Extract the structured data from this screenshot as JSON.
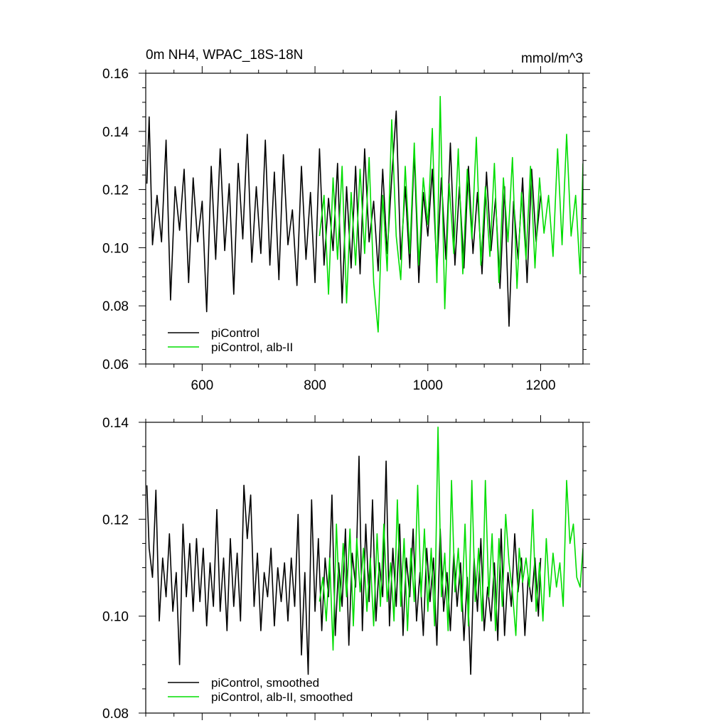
{
  "chart_data": [
    {
      "type": "line",
      "title": "0m NH4, WPAC_18S-18N",
      "units": "mmol/m^3",
      "xlim": [
        500,
        1275
      ],
      "ylim": [
        0.06,
        0.16
      ],
      "xticks": [
        600,
        800,
        1000,
        1200
      ],
      "xtick_labels": [
        "600",
        "800",
        "1000",
        "1200"
      ],
      "yticks": [
        0.06,
        0.08,
        0.1,
        0.12,
        0.14,
        0.16
      ],
      "ytick_labels": [
        "0.06",
        "0.08",
        "0.10",
        "0.12",
        "0.14",
        "0.16"
      ],
      "legend_position": "bottom-left",
      "series": [
        {
          "name": "piControl",
          "color": "#000000",
          "x": [
            502,
            506,
            512,
            520,
            528,
            536,
            544,
            552,
            560,
            568,
            576,
            584,
            592,
            600,
            608,
            616,
            624,
            632,
            640,
            648,
            656,
            664,
            672,
            680,
            688,
            696,
            704,
            712,
            720,
            728,
            736,
            744,
            752,
            760,
            768,
            776,
            784,
            792,
            800,
            808,
            816,
            824,
            832,
            840,
            848,
            856,
            864,
            872,
            880,
            888,
            896,
            904,
            912,
            920,
            928,
            936,
            944,
            952,
            960,
            968,
            976,
            984,
            992,
            1000,
            1008,
            1016,
            1024,
            1032,
            1040,
            1048,
            1056,
            1064,
            1072,
            1080,
            1088,
            1096,
            1104,
            1112,
            1120,
            1128,
            1136,
            1144,
            1152,
            1160,
            1168,
            1176,
            1184,
            1192,
            1200
          ],
          "y": [
            0.122,
            0.145,
            0.101,
            0.118,
            0.102,
            0.137,
            0.082,
            0.121,
            0.106,
            0.127,
            0.088,
            0.124,
            0.102,
            0.116,
            0.078,
            0.128,
            0.096,
            0.134,
            0.099,
            0.122,
            0.084,
            0.129,
            0.103,
            0.139,
            0.095,
            0.121,
            0.098,
            0.137,
            0.094,
            0.126,
            0.089,
            0.132,
            0.101,
            0.113,
            0.087,
            0.128,
            0.096,
            0.119,
            0.088,
            0.134,
            0.094,
            0.117,
            0.099,
            0.129,
            0.081,
            0.121,
            0.093,
            0.128,
            0.091,
            0.134,
            0.102,
            0.116,
            0.092,
            0.127,
            0.098,
            0.124,
            0.147,
            0.096,
            0.121,
            0.093,
            0.133,
            0.088,
            0.119,
            0.104,
            0.127,
            0.092,
            0.124,
            0.096,
            0.136,
            0.094,
            0.121,
            0.093,
            0.128,
            0.098,
            0.119,
            0.091,
            0.126,
            0.099,
            0.117,
            0.086,
            0.121,
            0.073,
            0.116,
            0.096,
            0.124,
            0.088,
            0.127,
            0.102,
            0.118
          ]
        },
        {
          "name": "piControl, alb-II",
          "color": "#00dd00",
          "x": [
            808,
            816,
            824,
            832,
            840,
            848,
            856,
            864,
            872,
            880,
            888,
            896,
            904,
            912,
            920,
            928,
            936,
            944,
            952,
            960,
            968,
            976,
            984,
            992,
            1000,
            1008,
            1016,
            1022,
            1030,
            1038,
            1046,
            1054,
            1062,
            1070,
            1078,
            1086,
            1094,
            1102,
            1110,
            1118,
            1126,
            1134,
            1142,
            1150,
            1158,
            1166,
            1174,
            1182,
            1190,
            1198,
            1206,
            1214,
            1222,
            1230,
            1238,
            1246,
            1254,
            1262,
            1270,
            1275
          ],
          "y": [
            0.104,
            0.118,
            0.084,
            0.124,
            0.096,
            0.128,
            0.081,
            0.119,
            0.094,
            0.127,
            0.098,
            0.131,
            0.088,
            0.071,
            0.118,
            0.092,
            0.144,
            0.104,
            0.089,
            0.128,
            0.098,
            0.136,
            0.094,
            0.124,
            0.108,
            0.141,
            0.088,
            0.152,
            0.079,
            0.122,
            0.098,
            0.134,
            0.091,
            0.127,
            0.103,
            0.138,
            0.094,
            0.121,
            0.097,
            0.129,
            0.088,
            0.124,
            0.102,
            0.131,
            0.086,
            0.119,
            0.096,
            0.128,
            0.093,
            0.124,
            0.105,
            0.118,
            0.097,
            0.134,
            0.101,
            0.139,
            0.104,
            0.118,
            0.091,
            0.129
          ]
        }
      ]
    },
    {
      "type": "line",
      "xlim": [
        500,
        1275
      ],
      "ylim": [
        0.08,
        0.14
      ],
      "xticks": [
        600,
        800,
        1000,
        1200
      ],
      "yticks": [
        0.08,
        0.1,
        0.12,
        0.14
      ],
      "ytick_labels": [
        "0.08",
        "0.10",
        "0.12",
        "0.14"
      ],
      "legend_position": "bottom-left",
      "series": [
        {
          "name": "piControl, smoothed",
          "color": "#000000",
          "x": [
            502,
            506,
            512,
            518,
            524,
            530,
            536,
            542,
            548,
            554,
            560,
            566,
            572,
            578,
            584,
            590,
            596,
            602,
            608,
            614,
            620,
            626,
            632,
            638,
            644,
            650,
            656,
            662,
            668,
            674,
            680,
            686,
            692,
            698,
            704,
            710,
            716,
            722,
            728,
            734,
            740,
            746,
            752,
            758,
            764,
            770,
            776,
            782,
            788,
            794,
            800,
            806,
            812,
            818,
            824,
            830,
            836,
            842,
            848,
            854,
            860,
            866,
            872,
            878,
            884,
            890,
            896,
            902,
            908,
            914,
            920,
            926,
            932,
            938,
            944,
            950,
            956,
            962,
            968,
            974,
            980,
            986,
            992,
            998,
            1004,
            1010,
            1016,
            1022,
            1028,
            1034,
            1040,
            1046,
            1052,
            1058,
            1064,
            1070,
            1076,
            1082,
            1088,
            1094,
            1100,
            1106,
            1112,
            1118,
            1124,
            1130,
            1136,
            1142,
            1148,
            1154,
            1160,
            1166,
            1172,
            1178,
            1184,
            1190,
            1196,
            1200
          ],
          "y": [
            0.127,
            0.114,
            0.108,
            0.126,
            0.099,
            0.112,
            0.104,
            0.117,
            0.101,
            0.109,
            0.09,
            0.119,
            0.104,
            0.115,
            0.101,
            0.116,
            0.103,
            0.114,
            0.098,
            0.111,
            0.102,
            0.122,
            0.101,
            0.112,
            0.097,
            0.116,
            0.102,
            0.113,
            0.099,
            0.127,
            0.116,
            0.125,
            0.102,
            0.113,
            0.097,
            0.109,
            0.104,
            0.114,
            0.098,
            0.11,
            0.103,
            0.111,
            0.099,
            0.112,
            0.102,
            0.121,
            0.092,
            0.109,
            0.088,
            0.124,
            0.101,
            0.116,
            0.097,
            0.112,
            0.104,
            0.125,
            0.096,
            0.111,
            0.102,
            0.118,
            0.094,
            0.113,
            0.106,
            0.133,
            0.097,
            0.119,
            0.103,
            0.124,
            0.099,
            0.111,
            0.104,
            0.132,
            0.098,
            0.114,
            0.102,
            0.119,
            0.096,
            0.112,
            0.104,
            0.118,
            0.099,
            0.109,
            0.096,
            0.114,
            0.103,
            0.112,
            0.094,
            0.118,
            0.101,
            0.109,
            0.097,
            0.113,
            0.102,
            0.111,
            0.095,
            0.108,
            0.088,
            0.112,
            0.101,
            0.116,
            0.097,
            0.106,
            0.099,
            0.111,
            0.095,
            0.118,
            0.096,
            0.109,
            0.102,
            0.117,
            0.105,
            0.112,
            0.096,
            0.108,
            0.103,
            0.112,
            0.1,
            0.112
          ]
        },
        {
          "name": "piControl, alb-II, smoothed",
          "color": "#00dd00",
          "x": [
            808,
            814,
            820,
            826,
            832,
            838,
            844,
            850,
            856,
            862,
            868,
            874,
            880,
            886,
            892,
            898,
            904,
            910,
            916,
            922,
            928,
            934,
            940,
            946,
            952,
            958,
            964,
            970,
            976,
            982,
            988,
            994,
            1000,
            1006,
            1012,
            1018,
            1024,
            1030,
            1036,
            1042,
            1048,
            1054,
            1060,
            1066,
            1072,
            1078,
            1084,
            1090,
            1096,
            1102,
            1108,
            1114,
            1120,
            1126,
            1132,
            1138,
            1144,
            1150,
            1156,
            1162,
            1168,
            1174,
            1180,
            1186,
            1192,
            1198,
            1204,
            1210,
            1216,
            1222,
            1228,
            1234,
            1240,
            1246,
            1252,
            1258,
            1264,
            1270,
            1275
          ],
          "y": [
            0.103,
            0.108,
            0.099,
            0.112,
            0.093,
            0.119,
            0.101,
            0.115,
            0.104,
            0.118,
            0.098,
            0.116,
            0.105,
            0.114,
            0.101,
            0.112,
            0.098,
            0.117,
            0.102,
            0.119,
            0.103,
            0.111,
            0.099,
            0.124,
            0.102,
            0.116,
            0.097,
            0.114,
            0.103,
            0.127,
            0.104,
            0.118,
            0.101,
            0.114,
            0.098,
            0.139,
            0.104,
            0.113,
            0.097,
            0.128,
            0.105,
            0.114,
            0.101,
            0.119,
            0.098,
            0.128,
            0.103,
            0.114,
            0.099,
            0.128,
            0.104,
            0.117,
            0.097,
            0.116,
            0.102,
            0.121,
            0.111,
            0.105,
            0.096,
            0.114,
            0.107,
            0.112,
            0.106,
            0.122,
            0.101,
            0.111,
            0.099,
            0.116,
            0.104,
            0.113,
            0.106,
            0.111,
            0.102,
            0.128,
            0.115,
            0.119,
            0.108,
            0.106,
            0.114
          ]
        }
      ]
    }
  ]
}
